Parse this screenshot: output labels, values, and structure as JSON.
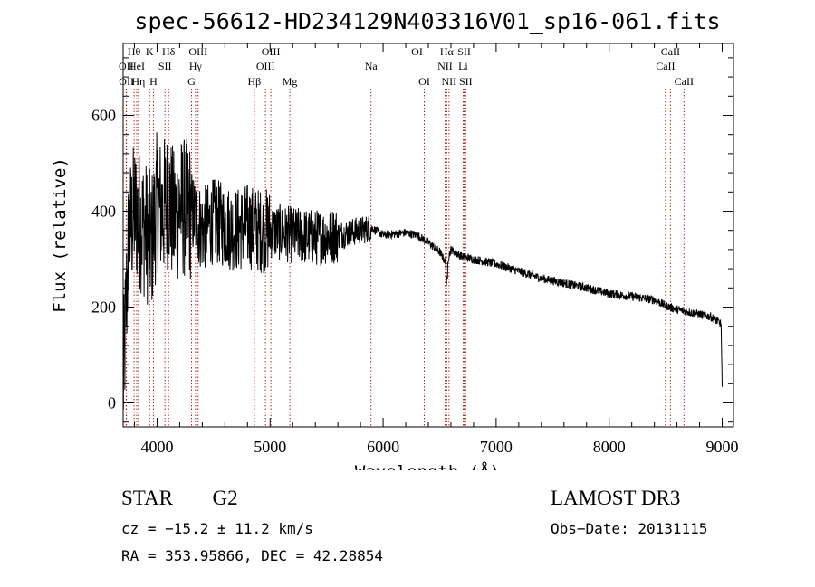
{
  "chart_data": {
    "type": "line",
    "title": "spec-56612-HD234129N403316V01_sp16-061.fits",
    "xlabel": "Wavelength (Å)",
    "ylabel": "Flux (relative)",
    "xlim": [
      3700,
      9100
    ],
    "ylim": [
      -50,
      750
    ],
    "xticks": [
      4000,
      5000,
      6000,
      7000,
      8000,
      9000
    ],
    "yticks": [
      0,
      200,
      400,
      600
    ],
    "series": [
      {
        "name": "spectrum",
        "x": [
          3700,
          3750,
          3800,
          3850,
          3900,
          3950,
          4000,
          4050,
          4100,
          4150,
          4200,
          4300,
          4400,
          4500,
          4600,
          4700,
          4800,
          4900,
          5000,
          5200,
          5400,
          5600,
          5800,
          5900,
          6000,
          6200,
          6300,
          6400,
          6500,
          6560,
          6600,
          6700,
          6800,
          7000,
          7200,
          7400,
          7600,
          7800,
          8000,
          8200,
          8400,
          8500,
          8600,
          8700,
          8800,
          8900,
          8990,
          9000
        ],
        "y": [
          30,
          350,
          400,
          380,
          360,
          330,
          420,
          400,
          430,
          380,
          410,
          400,
          360,
          380,
          370,
          360,
          370,
          360,
          360,
          350,
          345,
          350,
          360,
          365,
          350,
          355,
          350,
          335,
          315,
          290,
          320,
          305,
          300,
          290,
          275,
          260,
          250,
          240,
          228,
          222,
          215,
          203,
          195,
          190,
          185,
          180,
          165,
          30
        ]
      }
    ],
    "spectral_lines": [
      {
        "name": "Hθ",
        "wavelength": 3797,
        "row": 1
      },
      {
        "name": "OII",
        "wavelength": 3727,
        "row": 2
      },
      {
        "name": "OII",
        "wavelength": 3729,
        "row": 3
      },
      {
        "name": "HeI",
        "wavelength": 3820,
        "row": 2
      },
      {
        "name": "Hη",
        "wavelength": 3835,
        "row": 3
      },
      {
        "name": "K",
        "wavelength": 3934,
        "row": 1
      },
      {
        "name": "SII",
        "wavelength": 4070,
        "row": 2
      },
      {
        "name": "H",
        "wavelength": 3968,
        "row": 3
      },
      {
        "name": "Hδ",
        "wavelength": 4102,
        "row": 1
      },
      {
        "name": "OIII",
        "wavelength": 4363,
        "row": 1
      },
      {
        "name": "Hγ",
        "wavelength": 4340,
        "row": 2
      },
      {
        "name": "G",
        "wavelength": 4305,
        "row": 3
      },
      {
        "name": "Hβ",
        "wavelength": 4861,
        "row": 3
      },
      {
        "name": "OIII",
        "wavelength": 5007,
        "row": 1
      },
      {
        "name": "OIII",
        "wavelength": 4959,
        "row": 2
      },
      {
        "name": "Mg",
        "wavelength": 5175,
        "row": 3
      },
      {
        "name": "Na",
        "wavelength": 5893,
        "row": 2
      },
      {
        "name": "OI",
        "wavelength": 6300,
        "row": 1
      },
      {
        "name": "OI",
        "wavelength": 6364,
        "row": 3
      },
      {
        "name": "Hα",
        "wavelength": 6563,
        "row": 1
      },
      {
        "name": "NII",
        "wavelength": 6548,
        "row": 2
      },
      {
        "name": "NII",
        "wavelength": 6583,
        "row": 3
      },
      {
        "name": "SII",
        "wavelength": 6717,
        "row": 1
      },
      {
        "name": "Li",
        "wavelength": 6708,
        "row": 2
      },
      {
        "name": "SII",
        "wavelength": 6731,
        "row": 3
      },
      {
        "name": "CaII",
        "wavelength": 8542,
        "row": 1
      },
      {
        "name": "CaII",
        "wavelength": 8498,
        "row": 2
      },
      {
        "name": "CaII",
        "wavelength": 8662,
        "row": 3
      }
    ]
  },
  "info": {
    "object_class": "STAR",
    "subclass": "G2",
    "survey": "LAMOST DR3",
    "cz": "cz = −15.2 ± 11.2 km/s",
    "obs_date": "Obs−Date: 20131115",
    "coords": "RA = 353.95866, DEC =  42.28854"
  },
  "colors": {
    "spectrum": "#000000",
    "line_markers": "#b22222"
  }
}
